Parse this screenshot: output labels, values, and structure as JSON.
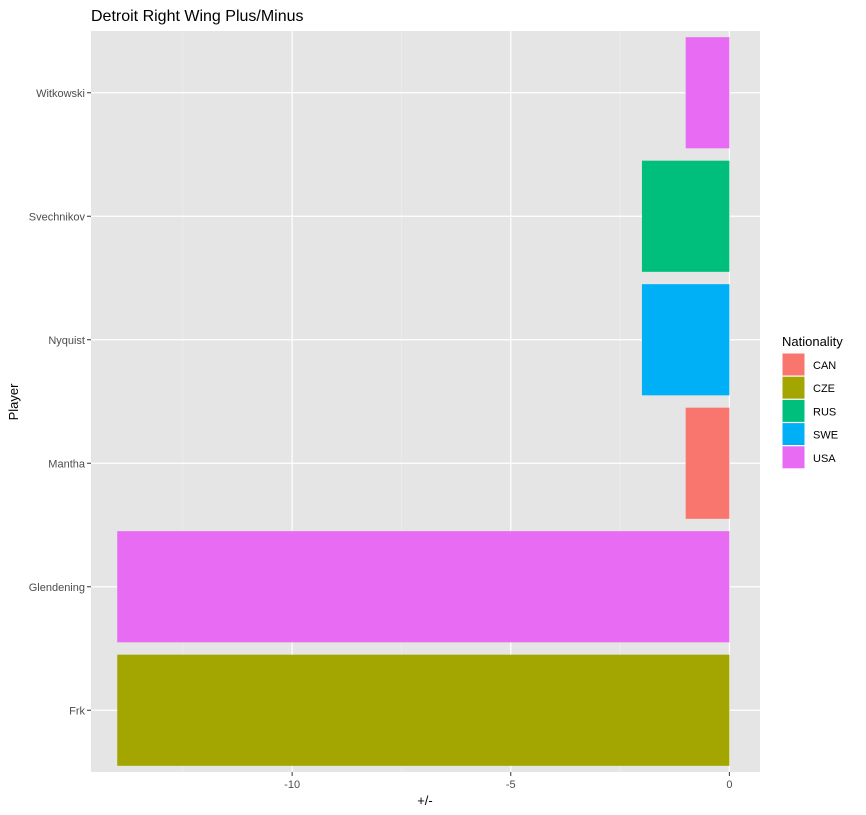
{
  "chart_data": {
    "type": "bar",
    "orientation": "horizontal",
    "title": "Detroit Right Wing Plus/Minus",
    "xlabel": "+/-",
    "ylabel": "Player",
    "xlim": [
      -14.6,
      0.7
    ],
    "x_ticks": [
      -10,
      -5,
      0
    ],
    "x_tick_labels": [
      "-10",
      "-5",
      "0"
    ],
    "grid": true,
    "categories": [
      "Frk",
      "Glendening",
      "Mantha",
      "Nyquist",
      "Svechnikov",
      "Witkowski"
    ],
    "values": [
      -14,
      -14,
      -1,
      -2,
      -2,
      -1
    ],
    "fill_group": [
      "CZE",
      "USA",
      "CAN",
      "SWE",
      "RUS",
      "USA"
    ],
    "legend": {
      "title": "Nationality",
      "position": "right",
      "entries": [
        {
          "label": "CAN",
          "color": "#F8766D"
        },
        {
          "label": "CZE",
          "color": "#A3A500"
        },
        {
          "label": "RUS",
          "color": "#00BF7D"
        },
        {
          "label": "SWE",
          "color": "#00B0F6"
        },
        {
          "label": "USA",
          "color": "#E76BF3"
        }
      ]
    },
    "colors": {
      "panel_background": "#e5e5e5",
      "grid_major": "#ffffff",
      "grid_minor": "#f0f0f0"
    }
  }
}
